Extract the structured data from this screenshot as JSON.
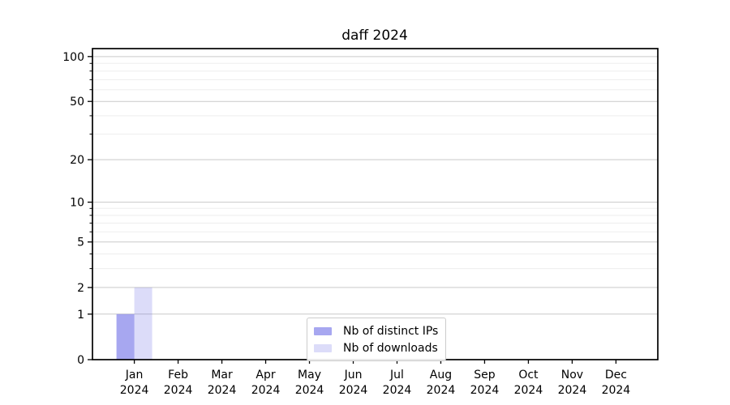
{
  "chart_data": {
    "type": "bar",
    "title": "daff 2024",
    "categories": [
      "Jan",
      "Feb",
      "Mar",
      "Apr",
      "May",
      "Jun",
      "Jul",
      "Aug",
      "Sep",
      "Oct",
      "Nov",
      "Dec"
    ],
    "category_sublabel": "2024",
    "series": [
      {
        "name": "Nb of distinct IPs",
        "color": "rgba(94,94,228,0.55)",
        "values": [
          1,
          0,
          0,
          0,
          0,
          0,
          0,
          0,
          0,
          0,
          0,
          0
        ]
      },
      {
        "name": "Nb of downloads",
        "color": "rgba(94,94,228,0.22)",
        "values": [
          2,
          0,
          0,
          0,
          0,
          0,
          0,
          0,
          0,
          0,
          0,
          0
        ]
      }
    ],
    "y_axis": {
      "scale": "log1p",
      "major_ticks": [
        0,
        1,
        2,
        5,
        10,
        20,
        50,
        100
      ],
      "minor_ticks": [
        3,
        4,
        6,
        7,
        8,
        9,
        30,
        40,
        60,
        70,
        80,
        90
      ],
      "axis_max": 113
    },
    "xlabel": "",
    "ylabel": "",
    "grid": true,
    "legend_position": "lower center",
    "colors": {
      "major_gridline": "#c9c9c9",
      "minor_gridline": "#ededed",
      "spine": "#000000",
      "tick": "#000000",
      "text": "#000000",
      "background": "#ffffff"
    }
  }
}
